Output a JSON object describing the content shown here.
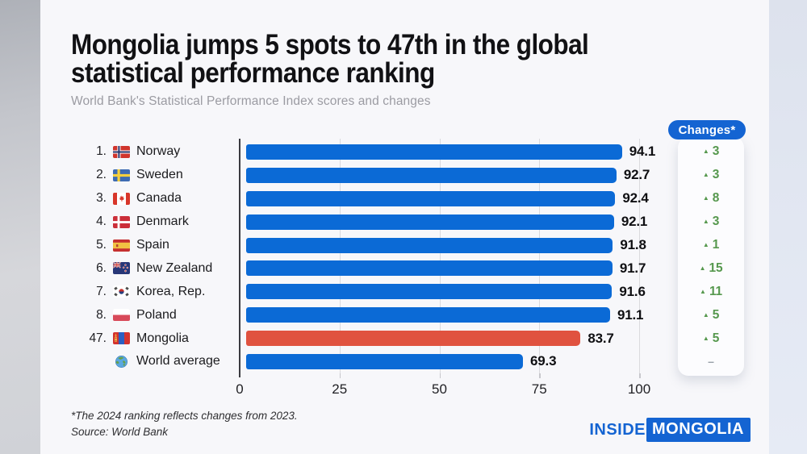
{
  "header": {
    "title_line1": "Mongolia jumps 5 spots to 47th in the global",
    "title_line2": "statistical performance ranking",
    "subtitle": "World Bank's Statistical Performance Index scores and changes"
  },
  "changes_header": "Changes*",
  "footnote": {
    "line1": "*The 2024 ranking reflects changes from 2023.",
    "line2": "Source: World Bank"
  },
  "logo": {
    "part1": "INSIDE",
    "part2": "MONGOLIA"
  },
  "colors": {
    "bar_blue": "#0b6ad6",
    "bar_red": "#e0523f",
    "accent_blue": "#1464d2",
    "change_green": "#56984e",
    "axis": "#3b3b41",
    "gridline": "#dadade"
  },
  "chart_data": {
    "type": "bar",
    "orientation": "horizontal",
    "title": "Mongolia jumps 5 spots to 47th in the global statistical performance ranking",
    "subtitle": "World Bank's Statistical Performance Index scores and changes",
    "xlabel": "",
    "ylabel": "",
    "xlim": [
      0,
      100
    ],
    "ticks": [
      0,
      25,
      50,
      75,
      100
    ],
    "grid": true,
    "legend": "none",
    "rows": [
      {
        "rank": "1.",
        "country": "Norway",
        "flag": "norway",
        "value": 94.1,
        "value_label": "94.1",
        "change": "3",
        "change_dir": "up",
        "highlight": false
      },
      {
        "rank": "2.",
        "country": "Sweden",
        "flag": "sweden",
        "value": 92.7,
        "value_label": "92.7",
        "change": "3",
        "change_dir": "up",
        "highlight": false
      },
      {
        "rank": "3.",
        "country": "Canada",
        "flag": "canada",
        "value": 92.4,
        "value_label": "92.4",
        "change": "8",
        "change_dir": "up",
        "highlight": false
      },
      {
        "rank": "4.",
        "country": "Denmark",
        "flag": "denmark",
        "value": 92.1,
        "value_label": "92.1",
        "change": "3",
        "change_dir": "up",
        "highlight": false
      },
      {
        "rank": "5.",
        "country": "Spain",
        "flag": "spain",
        "value": 91.8,
        "value_label": "91.8",
        "change": "1",
        "change_dir": "up",
        "highlight": false
      },
      {
        "rank": "6.",
        "country": "New Zealand",
        "flag": "new_zealand",
        "value": 91.7,
        "value_label": "91.7",
        "change": "15",
        "change_dir": "up",
        "highlight": false
      },
      {
        "rank": "7.",
        "country": "Korea, Rep.",
        "flag": "korea",
        "value": 91.6,
        "value_label": "91.6",
        "change": "11",
        "change_dir": "up",
        "highlight": false
      },
      {
        "rank": "8.",
        "country": "Poland",
        "flag": "poland",
        "value": 91.1,
        "value_label": "91.1",
        "change": "5",
        "change_dir": "up",
        "highlight": false
      },
      {
        "rank": "47.",
        "country": "Mongolia",
        "flag": "mongolia",
        "value": 83.7,
        "value_label": "83.7",
        "change": "5",
        "change_dir": "up",
        "highlight": true
      },
      {
        "rank": "",
        "country": "World average",
        "flag": "globe",
        "value": 69.3,
        "value_label": "69.3",
        "change": "-",
        "change_dir": "none",
        "highlight": false
      }
    ]
  }
}
